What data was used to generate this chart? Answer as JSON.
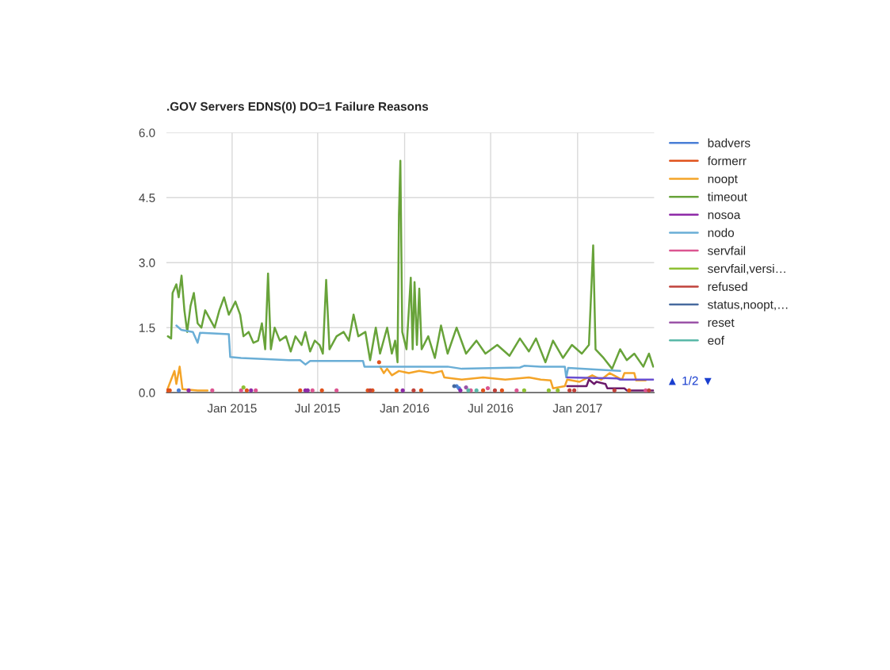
{
  "chart_data": {
    "type": "line",
    "title": ".GOV Servers EDNS(0) DO=1 Failure Reasons",
    "xlim": [
      "2014-08-15",
      "2017-06-12"
    ],
    "xticks": [
      {
        "value": "2015-01-01",
        "label": "Jan 2015"
      },
      {
        "value": "2015-07-01",
        "label": "Jul 2015"
      },
      {
        "value": "2016-01-01",
        "label": "Jan 2016"
      },
      {
        "value": "2016-07-01",
        "label": "Jul 2016"
      },
      {
        "value": "2017-01-01",
        "label": "Jan 2017"
      }
    ],
    "ylim": [
      0,
      6
    ],
    "yticks": [
      {
        "value": 0,
        "label": "0.0"
      },
      {
        "value": 1.5,
        "label": "1.5"
      },
      {
        "value": 3,
        "label": "3.0"
      },
      {
        "value": 4.5,
        "label": "4.5"
      },
      {
        "value": 6,
        "label": "6.0"
      }
    ],
    "grid": true,
    "legend": "right",
    "annotations": [
      "▲ 1/2 ▼"
    ],
    "series": [
      {
        "name": "badvers",
        "color": "#4a7fd6",
        "type": "scatter",
        "x": [
          "2014-09-10",
          "2016-04-20",
          "2016-04-25"
        ],
        "values": [
          0.05,
          0.15,
          0.1
        ]
      },
      {
        "name": "formerr",
        "color": "#e0531d",
        "type": "scatter",
        "x": [
          "2014-08-18",
          "2014-08-22",
          "2015-02-01",
          "2015-05-25",
          "2015-07-10",
          "2015-10-15",
          "2015-10-25",
          "2015-11-08",
          "2015-12-15",
          "2016-02-05",
          "2016-06-15",
          "2016-07-25",
          "2017-04-20"
        ],
        "values": [
          0.05,
          0.05,
          0.05,
          0.05,
          0.05,
          0.05,
          0.05,
          0.7,
          0.05,
          0.05,
          0.05,
          0.05,
          0.05
        ]
      },
      {
        "name": "noopt",
        "color": "#f4a428",
        "x": [
          "2014-08-18",
          "2014-08-25",
          "2014-09-01",
          "2014-09-05",
          "2014-09-12",
          "2014-09-18",
          "2014-10-20",
          "2014-11-10",
          "2015-06-01",
          "2015-11-10",
          "2015-11-18",
          "2015-11-25",
          "2015-12-05",
          "2015-12-20",
          "2016-01-10",
          "2016-02-01",
          "2016-03-01",
          "2016-03-20",
          "2016-03-25",
          "2016-05-01",
          "2016-06-15",
          "2016-08-01",
          "2016-09-20",
          "2016-10-15",
          "2016-11-05",
          "2016-11-10",
          "2016-12-05",
          "2016-12-10",
          "2017-01-05",
          "2017-02-01",
          "2017-02-20",
          "2017-03-10",
          "2017-04-05",
          "2017-04-10",
          "2017-05-01",
          "2017-05-05",
          "2017-05-25"
        ],
        "values": [
          0.1,
          0.3,
          0.5,
          0.2,
          0.6,
          0.08,
          0.05,
          0.05,
          null,
          0.6,
          0.45,
          0.55,
          0.4,
          0.5,
          0.45,
          0.5,
          0.45,
          0.5,
          0.35,
          0.3,
          0.35,
          0.3,
          0.35,
          0.3,
          0.28,
          0.1,
          0.15,
          0.3,
          0.25,
          0.4,
          0.3,
          0.45,
          0.3,
          0.45,
          0.45,
          0.28,
          0.28
        ]
      },
      {
        "name": "timeout",
        "color": "#68a33a",
        "x": [
          "2014-08-18",
          "2014-08-25",
          "2014-08-28",
          "2014-09-05",
          "2014-09-10",
          "2014-09-16",
          "2014-09-22",
          "2014-09-28",
          "2014-10-05",
          "2014-10-12",
          "2014-10-20",
          "2014-10-28",
          "2014-11-05",
          "2014-11-15",
          "2014-11-25",
          "2014-12-05",
          "2014-12-15",
          "2014-12-25",
          "2015-01-08",
          "2015-01-18",
          "2015-01-25",
          "2015-02-05",
          "2015-02-15",
          "2015-02-25",
          "2015-03-05",
          "2015-03-12",
          "2015-03-18",
          "2015-03-24",
          "2015-04-01",
          "2015-04-12",
          "2015-04-25",
          "2015-05-05",
          "2015-05-15",
          "2015-05-28",
          "2015-06-05",
          "2015-06-15",
          "2015-06-25",
          "2015-07-05",
          "2015-07-12",
          "2015-07-19",
          "2015-07-26",
          "2015-08-10",
          "2015-08-25",
          "2015-09-05",
          "2015-09-15",
          "2015-09-25",
          "2015-10-10",
          "2015-10-20",
          "2015-11-01",
          "2015-11-10",
          "2015-11-25",
          "2015-12-05",
          "2015-12-12",
          "2015-12-17",
          "2015-12-20",
          "2015-12-23",
          "2015-12-27",
          "2016-01-05",
          "2016-01-14",
          "2016-01-18",
          "2016-01-22",
          "2016-01-27",
          "2016-02-01",
          "2016-02-06",
          "2016-02-20",
          "2016-03-05",
          "2016-03-18",
          "2016-04-01",
          "2016-04-20",
          "2016-05-10",
          "2016-06-01",
          "2016-06-20",
          "2016-07-15",
          "2016-08-10",
          "2016-09-01",
          "2016-09-20",
          "2016-10-05",
          "2016-10-25",
          "2016-11-10",
          "2016-12-01",
          "2016-12-20",
          "2017-01-10",
          "2017-01-25",
          "2017-02-03",
          "2017-02-08",
          "2017-02-25",
          "2017-03-15",
          "2017-04-01",
          "2017-04-15",
          "2017-05-01",
          "2017-05-20",
          "2017-06-01",
          "2017-06-10"
        ],
        "values": [
          1.3,
          1.25,
          2.3,
          2.5,
          2.2,
          2.7,
          1.9,
          1.4,
          2.0,
          2.3,
          1.6,
          1.5,
          1.9,
          1.7,
          1.5,
          1.9,
          2.2,
          1.8,
          2.1,
          1.8,
          1.3,
          1.4,
          1.15,
          1.2,
          1.6,
          1.0,
          2.75,
          1.0,
          1.5,
          1.2,
          1.3,
          0.95,
          1.3,
          1.1,
          1.4,
          0.95,
          1.2,
          1.1,
          0.9,
          2.6,
          1.0,
          1.3,
          1.4,
          1.2,
          1.8,
          1.3,
          1.4,
          0.75,
          1.5,
          0.9,
          1.5,
          0.9,
          1.2,
          0.7,
          4.1,
          5.35,
          1.4,
          1.0,
          2.65,
          1.0,
          2.55,
          1.1,
          2.4,
          1.0,
          1.3,
          0.8,
          1.55,
          0.9,
          1.5,
          0.9,
          1.2,
          0.9,
          1.1,
          0.85,
          1.25,
          0.95,
          1.25,
          0.7,
          1.2,
          0.8,
          1.1,
          0.9,
          1.1,
          3.4,
          1.0,
          0.8,
          0.55,
          1.0,
          0.75,
          0.9,
          0.6,
          0.9,
          0.6
        ]
      },
      {
        "name": "nosoa",
        "color": "#8e2aa8",
        "type": "scatter",
        "x": [
          "2014-10-01",
          "2015-02-10",
          "2015-06-05",
          "2015-06-10",
          "2015-12-28",
          "2016-04-28"
        ],
        "values": [
          0.05,
          0.05,
          0.05,
          0.05,
          0.05,
          0.05
        ]
      },
      {
        "name": "nodo",
        "color": "#6aaed6",
        "x": [
          "2014-09-05",
          "2014-09-15",
          "2014-10-10",
          "2014-10-20",
          "2014-10-25",
          "2014-12-25",
          "2014-12-28",
          "2015-01-20",
          "2015-05-01",
          "2015-05-25",
          "2015-06-05",
          "2015-06-15",
          "2015-10-05",
          "2015-10-08",
          "2016-04-01",
          "2016-05-01",
          "2016-09-01",
          "2016-09-10",
          "2016-10-15",
          "2016-12-05",
          "2016-12-08",
          "2016-12-12",
          "2017-03-01",
          "2017-04-01"
        ],
        "values": [
          1.55,
          1.45,
          1.4,
          1.15,
          1.38,
          1.35,
          0.82,
          0.8,
          0.75,
          0.75,
          0.65,
          0.73,
          0.73,
          0.6,
          0.6,
          0.55,
          0.58,
          0.62,
          0.6,
          0.6,
          0.35,
          0.57,
          0.52,
          0.5
        ]
      },
      {
        "name": "servfail",
        "color": "#dc5591",
        "type": "scatter",
        "x": [
          "2014-11-20",
          "2015-01-20",
          "2015-02-20",
          "2015-06-20",
          "2015-08-10",
          "2016-05-20",
          "2016-06-25",
          "2016-08-25",
          "2017-05-25"
        ],
        "values": [
          0.05,
          0.05,
          0.05,
          0.05,
          0.05,
          0.05,
          0.1,
          0.05,
          0.05
        ]
      },
      {
        "name": "servfail,versi…",
        "color": "#8ec033",
        "type": "scatter",
        "x": [
          "2015-01-25",
          "2016-09-10",
          "2016-11-01",
          "2016-11-20"
        ],
        "values": [
          0.12,
          0.05,
          0.05,
          0.05
        ]
      },
      {
        "name": "refused",
        "color": "#c0423b",
        "type": "scatter",
        "x": [
          "2015-10-20",
          "2016-01-20",
          "2016-07-10",
          "2016-12-15",
          "2016-12-25",
          "2017-03-20",
          "2017-06-01"
        ],
        "values": [
          0.05,
          0.05,
          0.05,
          0.05,
          0.05,
          0.05,
          0.05
        ]
      },
      {
        "name": "status,noopt,…",
        "color": "#466a9e",
        "type": "scatter",
        "x": [
          "2016-04-15"
        ],
        "values": [
          0.15
        ]
      },
      {
        "name": "reset",
        "color": "#9b54a8",
        "type": "scatter",
        "x": [
          "2016-05-10"
        ],
        "values": [
          0.12
        ]
      },
      {
        "name": "eof",
        "color": "#59b8a8",
        "type": "scatter",
        "x": [
          "2016-05-15",
          "2016-06-01"
        ],
        "values": [
          0.05,
          0.05
        ]
      },
      {
        "color": "#6a4fd0",
        "x": [
          "2016-12-10",
          "2017-03-25",
          "2017-04-01",
          "2017-06-10"
        ],
        "values": [
          0.35,
          0.33,
          0.3,
          0.3
        ]
      },
      {
        "color": "#6b1a6b",
        "x": [
          "2016-12-10",
          "2017-01-20",
          "2017-01-25",
          "2017-02-05",
          "2017-02-10",
          "2017-03-01",
          "2017-03-05",
          "2017-04-10",
          "2017-04-15",
          "2017-06-10"
        ],
        "values": [
          0.15,
          0.15,
          0.3,
          0.2,
          0.25,
          0.2,
          0.1,
          0.1,
          0.05,
          0.05
        ]
      }
    ]
  }
}
